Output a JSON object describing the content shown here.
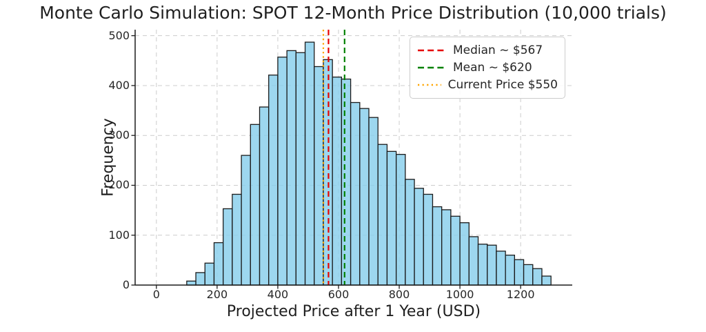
{
  "chart_data": {
    "type": "histogram",
    "title": "Monte Carlo Simulation: SPOT 12-Month Price Distribution (10,000 trials)",
    "xlabel": "Projected Price after 1 Year (USD)",
    "ylabel": "Frequency",
    "bins": {
      "start": 100,
      "width": 30
    },
    "frequencies": [
      8,
      25,
      44,
      85,
      153,
      182,
      260,
      322,
      357,
      421,
      457,
      470,
      466,
      487,
      438,
      452,
      417,
      413,
      366,
      354,
      336,
      282,
      268,
      262,
      212,
      194,
      182,
      157,
      151,
      138,
      125,
      97,
      82,
      80,
      68,
      60,
      51,
      41,
      33,
      18
    ],
    "xlim": [
      -70,
      1370
    ],
    "ylim": [
      0,
      512
    ],
    "xticks": [
      0,
      200,
      400,
      600,
      800,
      1000,
      1200
    ],
    "yticks": [
      0,
      100,
      200,
      300,
      400,
      500
    ],
    "grid": true,
    "grid_style": "dashed",
    "grid_color": "#cccccc",
    "bar_color": "#87CEEB",
    "bar_edge_color": "#1a1a1a",
    "legend_position": "upper right",
    "vlines": [
      {
        "label": "Median ~ $567",
        "value": 567,
        "color": "#e60000",
        "style": "dashed"
      },
      {
        "label": "Mean ~ $620",
        "value": 620,
        "color": "#008000",
        "style": "dashed"
      },
      {
        "label": "Current Price $550",
        "value": 550,
        "color": "#ffa500",
        "style": "dotted"
      }
    ]
  }
}
